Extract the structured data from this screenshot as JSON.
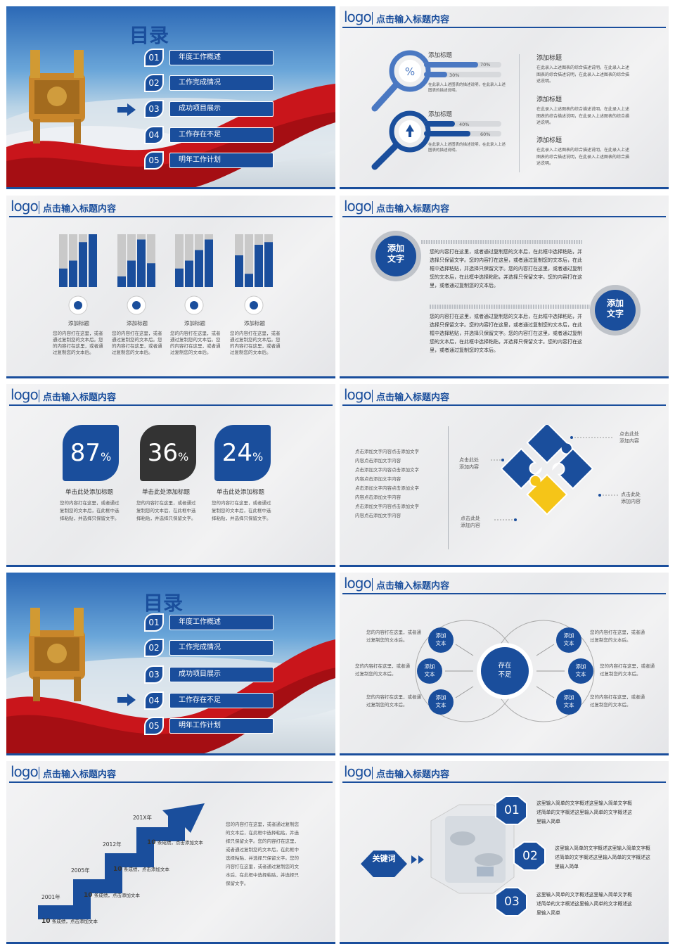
{
  "colors": {
    "brand": "#1a4e9c",
    "accent": "#f5c518",
    "dark": "#333333",
    "bar_grey": "#c9c9c9"
  },
  "logo": "logo",
  "header_title": "点击输入标题内容",
  "toc": {
    "title": "目录",
    "items": [
      {
        "num": "01",
        "label": "年度工作概述"
      },
      {
        "num": "02",
        "label": "工作完成情况"
      },
      {
        "num": "03",
        "label": "成功项目展示"
      },
      {
        "num": "04",
        "label": "工作存在不足"
      },
      {
        "num": "05",
        "label": "明年工作计划"
      }
    ],
    "arrow_icon": "right-arrow-icon"
  },
  "magnifier": {
    "items": [
      {
        "title": "添加标题",
        "bar1": "70%",
        "bar2": "30%",
        "fill1": 0.7,
        "fill2": 0.3,
        "desc": "在此录入上述图表的描述说明，在此录入上述图表的描述说明。",
        "icon": "percent-icon"
      },
      {
        "title": "添加标题",
        "bar1": "40%",
        "bar2": "60%",
        "fill1": 0.4,
        "fill2": 0.6,
        "desc": "在此录入上述图表的描述说明，在此录入上述图表的描述说明。",
        "icon": "upload-icon"
      }
    ],
    "side": [
      {
        "title": "添加标题",
        "text": "在此录入上述图表的综合描述说明，在此录入上述图表的综合描述说明，在此录入上述图表的综合描述说明。"
      },
      {
        "title": "添加标题",
        "text": "在此录入上述图表的综合描述说明，在此录入上述图表的综合描述说明，在此录入上述图表的综合描述说明。"
      },
      {
        "title": "添加标题",
        "text": "在此录入上述图表的综合描述说明，在此录入上述图表的综合描述说明，在此录入上述图表的综合描述说明。"
      }
    ]
  },
  "bars_slide": {
    "groups": [
      {
        "title": "添加标题",
        "icon": "globe-icon",
        "values": [
          0.35,
          0.5,
          0.85,
          1.0
        ],
        "text": "您的内容打在这里，或者通过复制您的文本后。您的内容打在这里，或者通过复制您的文本后。"
      },
      {
        "title": "添加标题",
        "icon": "gears-icon",
        "values": [
          0.2,
          0.5,
          0.9,
          0.45
        ],
        "text": "您的内容打在这里，或者通过复制您的文本后。您的内容打在这里，或者通过复制您的文本后。"
      },
      {
        "title": "添加标题",
        "icon": "briefcase-icon",
        "values": [
          0.35,
          0.5,
          0.7,
          0.9
        ],
        "text": "您的内容打在这里，或者通过复制您的文本后。您的内容打在这里，或者通过复制您的文本后。"
      },
      {
        "title": "添加标题",
        "icon": "pie-chart-icon",
        "values": [
          0.6,
          0.25,
          0.8,
          0.85
        ],
        "text": "您的内容打在这里，或者通过复制您的文本后。您的内容打在这里，或者通过复制您的文本后。"
      }
    ]
  },
  "circle_text": {
    "badge1": "添加\n文字",
    "badge2": "添加\n文字",
    "para1": "您的内容打在这里，或者通过复制您的文本后，在此框中选择粘贴，并选择只保留文字。您的内容打在这里，或者通过复制您的文本后，在此框中选择粘贴，并选择只保留文字。您的内容打在这里，或者通过复制您的文本后，在此框中选择粘贴，并选择只保留文字。您的内容打在这里，或者通过复制您的文本后。",
    "para2": "您的内容打在这里，或者通过复制您的文本后，在此框中选择粘贴，并选择只保留文字。您的内容打在这里，或者通过复制您的文本后，在此框中选择粘贴，并选择只保留文字。您的内容打在这里，或者通过复制您的文本后，在此框中选择粘贴，并选择只保留文字。您的内容打在这里，或者通过复制您的文本后。"
  },
  "percents": [
    {
      "value": "87",
      "unit": "%",
      "title": "单击此处添加标题",
      "text": "您的内容打在这里，或者通过复制您的文本后，在此框中选择粘贴，并选择只保留文字。",
      "color": "#1a4e9c"
    },
    {
      "value": "36",
      "unit": "%",
      "title": "单击此处添加标题",
      "text": "您的内容打在这里，或者通过复制您的文本后，在此框中选择粘贴，并选择只保留文字。",
      "color": "#333333"
    },
    {
      "value": "24",
      "unit": "%",
      "title": "单击此处添加标题",
      "text": "您的内容打在这里，或者通过复制您的文本后，在此框中选择粘贴，并选择只保留文字。",
      "color": "#1a4e9c"
    }
  ],
  "puzzle": {
    "left_lines": [
      "点击添加文字内容点击添加文字",
      "内容点击添加文字内容",
      "点击添加文字内容点击添加文字",
      "内容点击添加文字内容",
      "点击添加文字内容点击添加文字",
      "内容点击添加文字内容",
      "点击添加文字内容点击添加文字",
      "内容点击添加文字内容"
    ],
    "labels": [
      {
        "l1": "点击此处",
        "l2": "添加内容"
      },
      {
        "l1": "点击此处",
        "l2": "添加内容"
      },
      {
        "l1": "点击此处",
        "l2": "添加内容"
      },
      {
        "l1": "点击此处",
        "l2": "添加内容"
      }
    ]
  },
  "venn": {
    "center": "存在\n不足",
    "node": "添加\n文本",
    "text": "您的内容打在这里，或者通过复制您的文本后。"
  },
  "stairs": {
    "years": [
      "2001年",
      "2005年",
      "2012年",
      "201X年"
    ],
    "items": [
      {
        "num": "10",
        "text": "条成绩，点击添加文本"
      },
      {
        "num": "10",
        "text": "条成绩，点击添加文本"
      },
      {
        "num": "10",
        "text": "条成绩，点击添加文本"
      },
      {
        "num": "10",
        "text": "条成绩，点击添加文本"
      }
    ],
    "para": "您的内容打在这里，或者通过复制您的文本后，在此框中选择粘贴，并选择只保留文字。您的内容打在这里，或者通过复制您的文本后，在此框中选择粘贴，并选择只保留文字。您的内容打在这里，或者通过复制您的文本后，在此框中选择粘贴，并选择只保留文字。"
  },
  "hexes": {
    "keyword": "关键词",
    "items": [
      {
        "num": "01",
        "text": "这里输入简单的文字概述这里输入简单文字概述简单的文字概述这里输入简单的文字概述这里输入简单"
      },
      {
        "num": "02",
        "text": "这里输入简单的文字概述这里输入简单文字概述简单的文字概述这里输入简单的文字概述这里输入简单"
      },
      {
        "num": "03",
        "text": "这里输入简单的文字概述这里输入简单文字概述简单的文字概述这里输入简单的文字概述这里输入简单"
      }
    ]
  }
}
